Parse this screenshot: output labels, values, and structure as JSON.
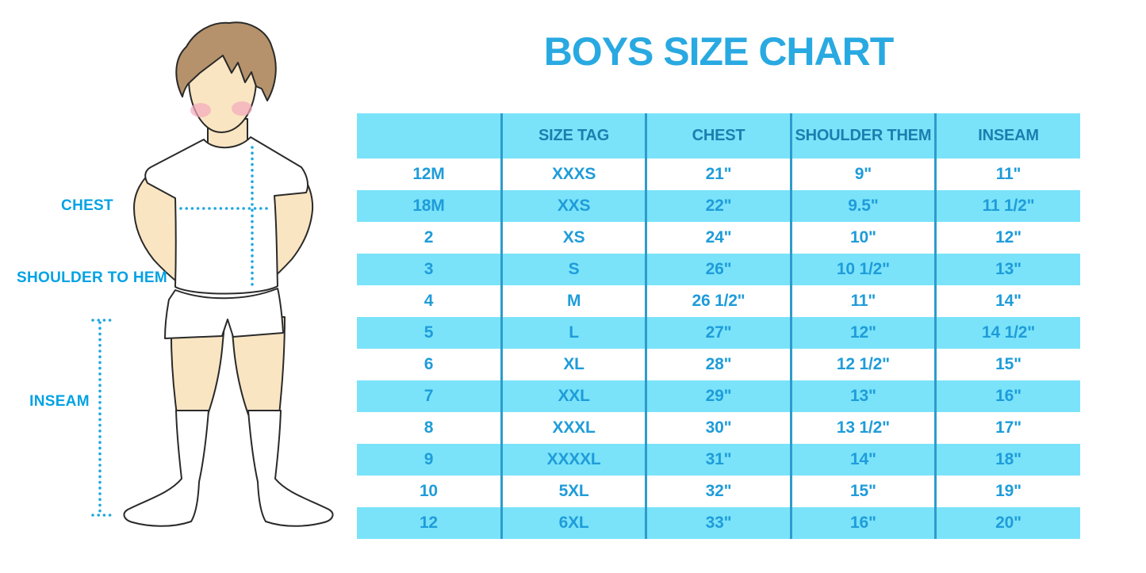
{
  "title": "BOYS SIZE CHART",
  "figure": {
    "labels": {
      "chest": "CHEST",
      "shoulder_to_hem": "SHOULDER TO HEM",
      "inseam": "INSEAM"
    }
  },
  "chart_data": {
    "type": "table",
    "title": "BOYS SIZE CHART",
    "headers": [
      "",
      "SIZE TAG",
      "CHEST",
      "SHOULDER THEM",
      "INSEAM"
    ],
    "rows": [
      [
        "12M",
        "XXXS",
        "21\"",
        "9\"",
        "11\""
      ],
      [
        "18M",
        "XXS",
        "22\"",
        "9.5\"",
        "11 1/2\""
      ],
      [
        "2",
        "XS",
        "24\"",
        "10\"",
        "12\""
      ],
      [
        "3",
        "S",
        "26\"",
        "10 1/2\"",
        "13\""
      ],
      [
        "4",
        "M",
        "26 1/2\"",
        "11\"",
        "14\""
      ],
      [
        "5",
        "L",
        "27\"",
        "12\"",
        "14 1/2\""
      ],
      [
        "6",
        "XL",
        "28\"",
        "12 1/2\"",
        "15\""
      ],
      [
        "7",
        "XXL",
        "29\"",
        "13\"",
        "16\""
      ],
      [
        "8",
        "XXXL",
        "30\"",
        "13 1/2\"",
        "17\""
      ],
      [
        "9",
        "XXXXL",
        "31\"",
        "14\"",
        "18\""
      ],
      [
        "10",
        "5XL",
        "32\"",
        "15\"",
        "19\""
      ],
      [
        "12",
        "6XL",
        "33\"",
        "16\"",
        "20\""
      ]
    ],
    "layout": {
      "striped": true,
      "stripe_rows": "even (18M,3,5,7,9,12)",
      "grid": "vertical dividers only"
    }
  },
  "colors": {
    "title_blue": "#29A9E1",
    "measure_label_blue": "#00A2E4",
    "row_cyan": "#7AE3FA",
    "divider_blue": "#2E9BCC",
    "header_text_blue": "#1C7EAF",
    "cell_text_blue": "#1F9CD9",
    "dotted_line_cyan": "#1FA7E0",
    "skin": "#FAE5C2",
    "hair_brown": "#B5926B",
    "cheek_pink": "#F2A9BC"
  }
}
